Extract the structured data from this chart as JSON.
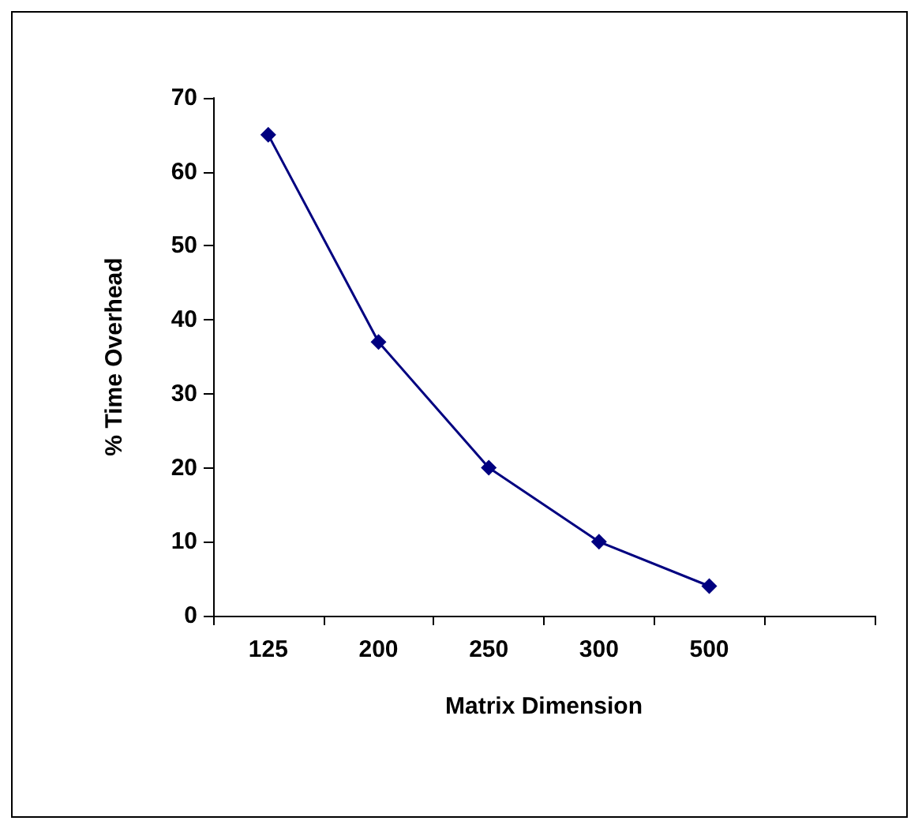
{
  "chart_data": {
    "type": "line",
    "xlabel": "Matrix Dimension",
    "ylabel": "% Time Overhead",
    "categories": [
      "125",
      "200",
      "250",
      "300",
      "500",
      null
    ],
    "series": [
      {
        "color": "#000080",
        "values": [
          65,
          37,
          20,
          10,
          4,
          null
        ]
      }
    ],
    "ylim": [
      0,
      70
    ],
    "yticks": [
      0,
      10,
      20,
      30,
      40,
      50,
      60,
      70
    ],
    "grid": false,
    "legend": false,
    "marker": "diamond",
    "line_style": "solid"
  }
}
